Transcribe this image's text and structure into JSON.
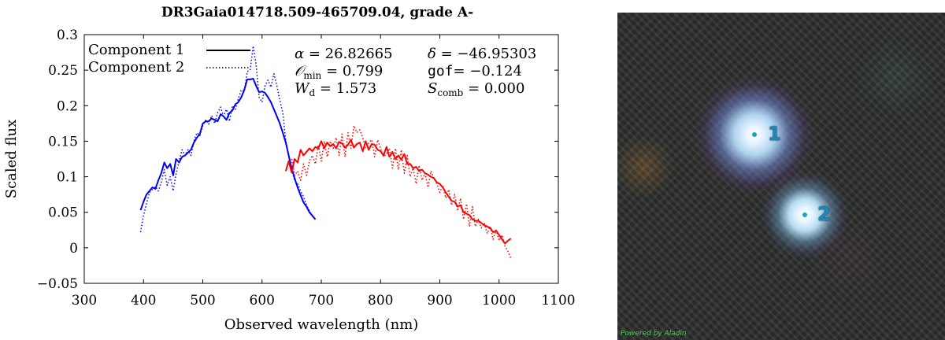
{
  "chart_data": {
    "type": "line",
    "title": "DR3Gaia014718.509-465709.04, grade A-",
    "xlabel": "Observed wavelength (nm)",
    "ylabel": "Scaled flux",
    "xlim": [
      300,
      1100
    ],
    "ylim": [
      -0.05,
      0.3
    ],
    "xticks": [
      300,
      400,
      500,
      600,
      700,
      800,
      900,
      1000,
      1100
    ],
    "yticks": [
      -0.05,
      0,
      0.05,
      0.1,
      0.15,
      0.2,
      0.25,
      0.3
    ],
    "ytick_labels": [
      "−0.05",
      "0",
      "0.05",
      "0.1",
      "0.15",
      "0.2",
      "0.25",
      "0.3"
    ],
    "legend": {
      "placement": "top-left",
      "entries": [
        {
          "label": "Component 1",
          "style": "solid"
        },
        {
          "label": "Component 2",
          "style": "dotted"
        }
      ]
    },
    "annotations": {
      "alpha_sym": "α",
      "alpha_val": " = 26.82665",
      "delta_sym": "δ",
      "delta_val": " = −46.95303",
      "omin_sym": "𝒪",
      "omin_sub": "min",
      "omin_val": " = 0.799",
      "gof_sym": "gof",
      "gof_val": "= −0.124",
      "wd_sym": "W",
      "wd_sub": "d",
      "wd_val": " = 1.573",
      "scomb_sym": "S",
      "scomb_sub": "comb",
      "scomb_val": " = 0.000"
    },
    "series": [
      {
        "name": "Component 1",
        "color": "#0000ff",
        "style": "solid",
        "x": [
          395,
          400,
          405,
          410,
          415,
          420,
          425,
          430,
          435,
          440,
          445,
          450,
          455,
          460,
          465,
          470,
          475,
          480,
          485,
          490,
          495,
          500,
          505,
          510,
          515,
          520,
          525,
          530,
          535,
          540,
          545,
          550,
          555,
          560,
          565,
          570,
          575,
          580,
          585,
          590,
          595,
          600,
          605,
          610,
          615,
          620,
          625,
          630,
          635,
          640,
          645,
          650,
          655,
          660,
          665,
          670,
          675,
          680,
          685,
          690
        ],
        "y": [
          0.053,
          0.065,
          0.075,
          0.08,
          0.085,
          0.083,
          0.095,
          0.105,
          0.12,
          0.112,
          0.118,
          0.102,
          0.125,
          0.12,
          0.128,
          0.13,
          0.134,
          0.138,
          0.148,
          0.155,
          0.16,
          0.175,
          0.178,
          0.178,
          0.182,
          0.18,
          0.178,
          0.188,
          0.185,
          0.18,
          0.19,
          0.193,
          0.202,
          0.205,
          0.212,
          0.222,
          0.237,
          0.237,
          0.238,
          0.228,
          0.219,
          0.22,
          0.218,
          0.212,
          0.205,
          0.195,
          0.185,
          0.175,
          0.162,
          0.148,
          0.13,
          0.112,
          0.098,
          0.085,
          0.074,
          0.064,
          0.058,
          0.05,
          0.045,
          0.04
        ]
      },
      {
        "name": "Component 2",
        "color": "#0000ff",
        "style": "dotted",
        "x": [
          395,
          400,
          405,
          410,
          415,
          420,
          425,
          430,
          435,
          440,
          445,
          450,
          455,
          460,
          465,
          470,
          475,
          480,
          485,
          490,
          495,
          500,
          505,
          510,
          515,
          520,
          525,
          530,
          535,
          540,
          545,
          550,
          555,
          560,
          565,
          570,
          575,
          580,
          585,
          590,
          595,
          600,
          605,
          610,
          615,
          620,
          625,
          630,
          635,
          640,
          645,
          650,
          655,
          660,
          665,
          670,
          675,
          680,
          685
        ],
        "y": [
          0.022,
          0.046,
          0.062,
          0.078,
          0.082,
          0.086,
          0.08,
          0.092,
          0.11,
          0.088,
          0.1,
          0.08,
          0.104,
          0.122,
          0.138,
          0.13,
          0.138,
          0.13,
          0.15,
          0.162,
          0.158,
          0.172,
          0.18,
          0.174,
          0.186,
          0.175,
          0.19,
          0.198,
          0.185,
          0.195,
          0.178,
          0.2,
          0.195,
          0.21,
          0.222,
          0.22,
          0.248,
          0.25,
          0.284,
          0.258,
          0.212,
          0.205,
          0.228,
          0.236,
          0.226,
          0.245,
          0.228,
          0.208,
          0.19,
          0.15,
          0.13,
          0.11,
          0.095,
          0.09,
          0.08,
          0.072,
          0.06,
          0.052,
          0.045
        ]
      },
      {
        "name": "Component 1",
        "color": "#ff0000",
        "style": "solid",
        "x": [
          640,
          645,
          650,
          655,
          660,
          665,
          670,
          675,
          680,
          685,
          690,
          695,
          700,
          705,
          710,
          715,
          720,
          725,
          730,
          735,
          740,
          745,
          750,
          755,
          760,
          765,
          770,
          775,
          780,
          785,
          790,
          795,
          800,
          805,
          810,
          815,
          820,
          825,
          830,
          835,
          840,
          845,
          850,
          855,
          860,
          865,
          870,
          875,
          880,
          885,
          890,
          895,
          900,
          905,
          910,
          915,
          920,
          925,
          930,
          935,
          940,
          945,
          950,
          955,
          960,
          965,
          970,
          975,
          980,
          985,
          990,
          995,
          1000,
          1005,
          1010,
          1015,
          1020
        ],
        "y": [
          0.108,
          0.122,
          0.106,
          0.125,
          0.12,
          0.138,
          0.13,
          0.135,
          0.14,
          0.136,
          0.142,
          0.14,
          0.15,
          0.14,
          0.148,
          0.143,
          0.146,
          0.14,
          0.149,
          0.147,
          0.141,
          0.145,
          0.152,
          0.141,
          0.146,
          0.148,
          0.136,
          0.15,
          0.138,
          0.146,
          0.145,
          0.138,
          0.136,
          0.13,
          0.142,
          0.128,
          0.135,
          0.125,
          0.13,
          0.124,
          0.132,
          0.118,
          0.118,
          0.112,
          0.114,
          0.108,
          0.11,
          0.105,
          0.103,
          0.1,
          0.098,
          0.092,
          0.09,
          0.085,
          0.078,
          0.072,
          0.066,
          0.065,
          0.058,
          0.06,
          0.05,
          0.048,
          0.046,
          0.04,
          0.038,
          0.038,
          0.035,
          0.032,
          0.03,
          0.028,
          0.022,
          0.024,
          0.018,
          0.012,
          0.006,
          0.01,
          0.013
        ]
      },
      {
        "name": "Component 2",
        "color": "#ff0000",
        "style": "dotted",
        "x": [
          650,
          655,
          660,
          665,
          670,
          675,
          680,
          685,
          690,
          695,
          700,
          705,
          710,
          715,
          720,
          725,
          730,
          735,
          740,
          745,
          750,
          755,
          760,
          765,
          770,
          775,
          780,
          785,
          790,
          795,
          800,
          805,
          810,
          815,
          820,
          825,
          830,
          835,
          840,
          845,
          850,
          855,
          860,
          865,
          870,
          875,
          880,
          885,
          890,
          895,
          900,
          905,
          910,
          915,
          920,
          925,
          930,
          935,
          940,
          945,
          950,
          955,
          960,
          965,
          970,
          975,
          980,
          985,
          990,
          995,
          1000,
          1005,
          1010,
          1015,
          1020
        ],
        "y": [
          0.125,
          0.102,
          0.108,
          0.095,
          0.118,
          0.102,
          0.122,
          0.13,
          0.118,
          0.145,
          0.122,
          0.15,
          0.128,
          0.15,
          0.14,
          0.155,
          0.13,
          0.16,
          0.128,
          0.162,
          0.14,
          0.172,
          0.162,
          0.166,
          0.155,
          0.14,
          0.148,
          0.152,
          0.128,
          0.152,
          0.14,
          0.128,
          0.132,
          0.14,
          0.112,
          0.14,
          0.11,
          0.138,
          0.105,
          0.13,
          0.1,
          0.112,
          0.09,
          0.116,
          0.095,
          0.105,
          0.085,
          0.108,
          0.098,
          0.09,
          0.078,
          0.088,
          0.07,
          0.082,
          0.06,
          0.075,
          0.052,
          0.07,
          0.04,
          0.062,
          0.03,
          0.058,
          0.03,
          0.04,
          0.028,
          0.035,
          0.02,
          0.03,
          0.012,
          0.025,
          0.01,
          0.018,
          0.002,
          -0.005,
          -0.015
        ]
      }
    ]
  },
  "sky_image": {
    "star_labels": [
      "1",
      "2"
    ],
    "credit": "Powered by Aladin"
  }
}
